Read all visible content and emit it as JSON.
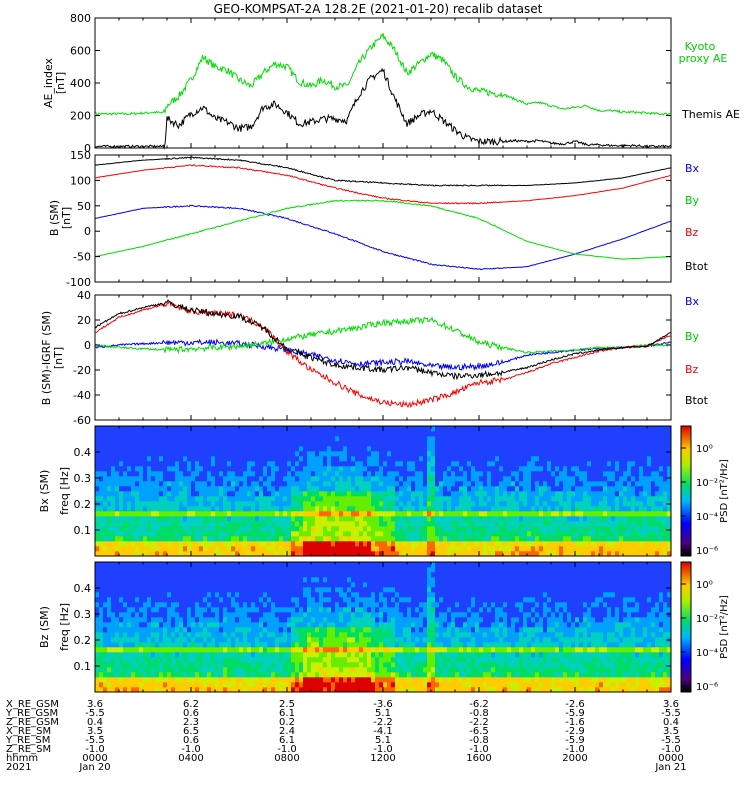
{
  "title": "GEO-KOMPSAT-2A 128.2E (2021-01-20) recalib dataset",
  "colors": {
    "black": "#000000",
    "blue": "#0000ff",
    "red": "#ff0000",
    "green": "#00dd00"
  },
  "chart_data": [
    {
      "type": "line",
      "panel": "ae",
      "ylabel": "AE_index\n[nT]",
      "ylim": [
        0,
        800
      ],
      "yticks": [
        0,
        200,
        400,
        600,
        800
      ],
      "x_hours": [
        0,
        1,
        1.5,
        2,
        2.5,
        2.9,
        3,
        3.5,
        4,
        4.5,
        5,
        5.5,
        6,
        6.5,
        7,
        7.5,
        8,
        8.5,
        9,
        9.5,
        10,
        10.5,
        11,
        11.5,
        12,
        12.5,
        13,
        13.5,
        14,
        14.5,
        15,
        15.5,
        16,
        16.5,
        17,
        17.5,
        18,
        18.5,
        19,
        19.5,
        20,
        20.5,
        21,
        21.5,
        22,
        22.5,
        23,
        23.5,
        24
      ],
      "series": [
        {
          "name": "Kyoto proxy AE",
          "color": "#00dd00",
          "values": [
            210,
            210,
            210,
            215,
            220,
            215,
            260,
            320,
            420,
            560,
            500,
            480,
            420,
            380,
            460,
            520,
            500,
            410,
            380,
            420,
            380,
            380,
            520,
            620,
            690,
            600,
            460,
            520,
            580,
            540,
            440,
            380,
            350,
            340,
            330,
            300,
            270,
            280,
            260,
            240,
            250,
            260,
            230,
            230,
            220,
            220,
            215,
            210,
            210
          ]
        },
        {
          "name": "Themis AE",
          "color": "#000000",
          "values": [
            10,
            10,
            10,
            10,
            10,
            10,
            180,
            140,
            210,
            250,
            180,
            160,
            120,
            130,
            250,
            270,
            220,
            150,
            160,
            180,
            180,
            170,
            330,
            430,
            480,
            300,
            150,
            200,
            230,
            170,
            110,
            60,
            40,
            40,
            40,
            45,
            40,
            45,
            30,
            25,
            40,
            20,
            20,
            15,
            15,
            15,
            10,
            10,
            10
          ]
        }
      ]
    },
    {
      "type": "line",
      "panel": "b_sm",
      "ylabel": "B (SM)\n[nT]",
      "ylim": [
        -100,
        150
      ],
      "yticks": [
        -100,
        -50,
        0,
        50,
        100,
        150
      ],
      "x_hours": [
        0,
        2,
        4,
        6,
        8,
        10,
        12,
        14,
        16,
        18,
        20,
        22,
        24
      ],
      "series": [
        {
          "name": "Bx",
          "color": "#0000ff",
          "values": [
            25,
            45,
            50,
            45,
            25,
            -5,
            -40,
            -65,
            -75,
            -70,
            -45,
            -15,
            20
          ]
        },
        {
          "name": "By",
          "color": "#00dd00",
          "values": [
            -50,
            -30,
            -5,
            20,
            45,
            60,
            60,
            50,
            25,
            -20,
            -45,
            -55,
            -50
          ]
        },
        {
          "name": "Bz",
          "color": "#ff0000",
          "values": [
            105,
            120,
            130,
            125,
            110,
            85,
            65,
            55,
            55,
            60,
            70,
            85,
            110
          ]
        },
        {
          "name": "Btot",
          "color": "#000000",
          "values": [
            130,
            140,
            145,
            140,
            125,
            100,
            95,
            90,
            90,
            90,
            95,
            105,
            125
          ]
        }
      ]
    },
    {
      "type": "line",
      "panel": "b_igrf",
      "ylabel": "B (SM)-IGRF (SM)\n[nT]",
      "ylim": [
        -60,
        40
      ],
      "yticks": [
        -60,
        -40,
        -20,
        0,
        20,
        40
      ],
      "x_hours": [
        0,
        1,
        2,
        3,
        4,
        5,
        6,
        7,
        8,
        9,
        10,
        11,
        12,
        13,
        14,
        15,
        16,
        17,
        18,
        19,
        20,
        21,
        22,
        23,
        24
      ],
      "series": [
        {
          "name": "Bx",
          "color": "#0000ff",
          "values": [
            -2,
            0,
            1,
            2,
            2,
            2,
            1,
            -1,
            -4,
            -8,
            -12,
            -15,
            -14,
            -13,
            -17,
            -18,
            -17,
            -14,
            -8,
            -6,
            -4,
            -3,
            -2,
            -1,
            2
          ]
        },
        {
          "name": "By",
          "color": "#00dd00",
          "values": [
            0,
            -2,
            -3,
            -4,
            -3,
            -2,
            -1,
            1,
            5,
            8,
            11,
            14,
            18,
            19,
            20,
            12,
            2,
            -2,
            -6,
            -5,
            -4,
            -2,
            -2,
            0,
            0
          ]
        },
        {
          "name": "Bz",
          "color": "#ff0000",
          "values": [
            10,
            22,
            28,
            33,
            27,
            25,
            24,
            15,
            -5,
            -20,
            -30,
            -40,
            -46,
            -48,
            -44,
            -38,
            -30,
            -28,
            -22,
            -15,
            -10,
            -5,
            -2,
            -1,
            8
          ]
        },
        {
          "name": "Btot",
          "color": "#000000",
          "values": [
            14,
            25,
            30,
            34,
            28,
            25,
            23,
            14,
            -3,
            -10,
            -16,
            -18,
            -20,
            -18,
            -22,
            -25,
            -24,
            -22,
            -18,
            -12,
            -7,
            -4,
            -2,
            -1,
            10
          ]
        }
      ]
    },
    {
      "type": "heatmap",
      "panel": "spec_bx",
      "ylabel": "Bx (SM)\nfreq [Hz]",
      "ylim": [
        0,
        0.5
      ],
      "yticks": [
        0.1,
        0.2,
        0.3,
        0.4
      ],
      "colorbar": {
        "label": "PSD [nT²/Hz]",
        "ticks": [
          "10⁰",
          "10⁻²",
          "10⁻⁴",
          "10⁻⁶"
        ]
      }
    },
    {
      "type": "heatmap",
      "panel": "spec_bz",
      "ylabel": "Bz (SM)\nfreq [Hz]",
      "ylim": [
        0,
        0.5
      ],
      "yticks": [
        0.1,
        0.2,
        0.3,
        0.4
      ],
      "colorbar": {
        "label": "PSD [nT²/Hz]",
        "ticks": [
          "10⁰",
          "10⁻²",
          "10⁻⁴",
          "10⁻⁶"
        ]
      }
    }
  ],
  "ephemeris": {
    "row_labels": [
      "X_RE_GSM",
      "Y_RE_GSM",
      "Z_RE_GSM",
      "X_RE_SM",
      "Y_RE_SM",
      "Z_RE_SM",
      "hhmm",
      "2021"
    ],
    "columns": [
      [
        "3.6",
        "-5.5",
        "0.4",
        "3.5",
        "-5.5",
        "-1.0",
        "0000",
        "Jan 20"
      ],
      [
        "6.2",
        "0.6",
        "2.3",
        "6.5",
        "0.6",
        "-1.0",
        "0400",
        ""
      ],
      [
        "2.5",
        "6.1",
        "0.2",
        "2.4",
        "6.1",
        "-1.0",
        "0800",
        ""
      ],
      [
        "-3.6",
        "5.1",
        "-2.2",
        "-4.1",
        "5.1",
        "-1.0",
        "1200",
        ""
      ],
      [
        "-6.2",
        "-0.8",
        "-2.2",
        "-6.5",
        "-0.8",
        "-1.0",
        "1600",
        ""
      ],
      [
        "-2.6",
        "-5.9",
        "-1.6",
        "-2.9",
        "-5.9",
        "-1.0",
        "2000",
        ""
      ],
      [
        "3.6",
        "-5.5",
        "0.4",
        "3.5",
        "-5.5",
        "-1.0",
        "0000",
        "Jan 21"
      ]
    ]
  }
}
